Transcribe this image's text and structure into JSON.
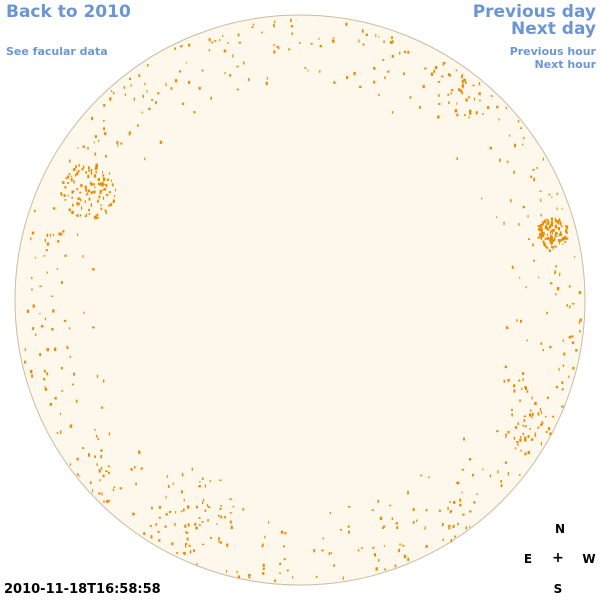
{
  "nav": {
    "back_label": "Back to 2010",
    "facular_label": "See facular data",
    "prev_day_label": "Previous day",
    "next_day_label": "Next day",
    "prev_hour_label": "Previous hour",
    "next_hour_label": "Next hour"
  },
  "timestamp": "2010-11-18T16:58:58",
  "compass": {
    "north": "N",
    "south": "S",
    "east": "E",
    "west": "W",
    "center": "+"
  },
  "colors": {
    "link": "#6b96d6",
    "disk_fill": "#fdf8eb",
    "disk_stroke": "#c8bca4",
    "facula": "#e88c00"
  }
}
